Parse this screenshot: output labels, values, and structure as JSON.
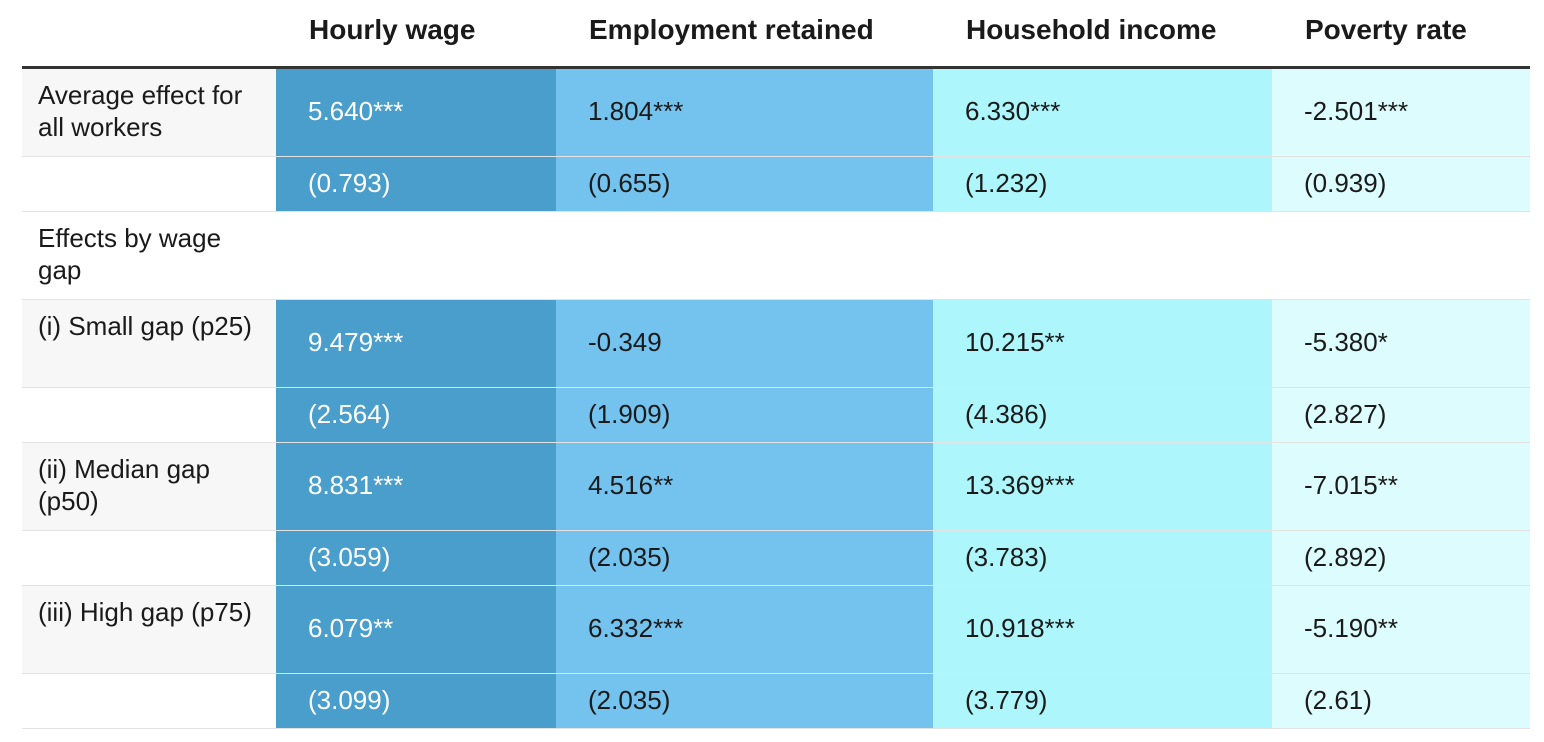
{
  "chart_data": {
    "type": "table",
    "columns": [
      "Hourly wage",
      "Employment retained",
      "Household income",
      "Poverty rate"
    ],
    "rows": [
      {
        "label": "Average effect for all workers",
        "values": [
          "5.640***",
          "1.804***",
          "6.330***",
          "-2.501***"
        ]
      },
      {
        "label": "",
        "values": [
          "(0.793)",
          "(0.655)",
          "(1.232)",
          "(0.939)"
        ]
      },
      {
        "label": "Effects by wage gap",
        "values": [
          "",
          "",
          "",
          ""
        ]
      },
      {
        "label": "(i) Small gap (p25)",
        "values": [
          "9.479***",
          "-0.349",
          "10.215**",
          "-5.380*"
        ]
      },
      {
        "label": "",
        "values": [
          "(2.564)",
          "(1.909)",
          "(4.386)",
          "(2.827)"
        ]
      },
      {
        "label": "(ii) Median gap (p50)",
        "values": [
          "8.831***",
          "4.516**",
          "13.369***",
          "-7.015**"
        ]
      },
      {
        "label": "",
        "values": [
          "(3.059)",
          "(2.035)",
          "(3.783)",
          "(2.892)"
        ]
      },
      {
        "label": "(iii) High gap (p75)",
        "values": [
          "6.079**",
          "6.332***",
          "10.918***",
          "-5.190**"
        ]
      },
      {
        "label": "",
        "values": [
          "(3.099)",
          "(2.035)",
          "(3.779)",
          "(2.61)"
        ]
      }
    ],
    "column_colors": [
      "#4a9ecb",
      "#74c3ee",
      "#adf6fb",
      "#dcfcfe"
    ],
    "column_text_colors": [
      "#ffffff",
      "#1a1a1a",
      "#1a1a1a",
      "#1a1a1a"
    ]
  }
}
